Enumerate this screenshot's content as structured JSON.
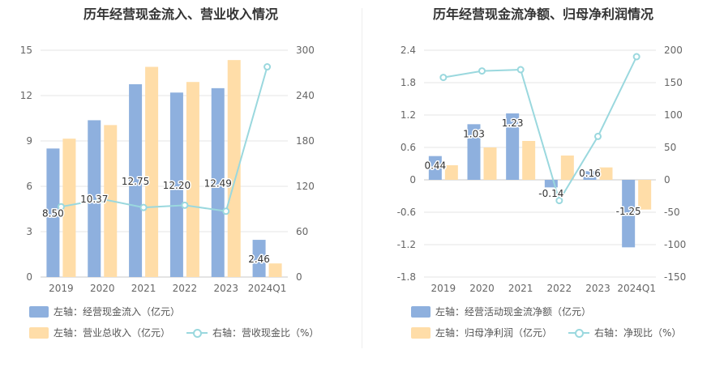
{
  "colors": {
    "blue": "#8eb0de",
    "orange": "#ffdda8",
    "line": "#9ad8de"
  },
  "chart_data": [
    {
      "type": "bar",
      "title": "历年经营现金流入、营业收入情况",
      "categories": [
        "2019",
        "2020",
        "2021",
        "2022",
        "2023",
        "2024Q1"
      ],
      "yleft": {
        "ticks": [
          "0",
          "3",
          "6",
          "9",
          "12",
          "15"
        ],
        "ylim": [
          0,
          15
        ]
      },
      "yright": {
        "ticks": [
          "0",
          "60",
          "120",
          "180",
          "240",
          "300"
        ],
        "ylim": [
          0,
          300
        ]
      },
      "series": [
        {
          "name": "左轴：经营现金流入（亿元）",
          "axis": "left",
          "kind": "bar",
          "color": "#8eb0de",
          "values": [
            8.5,
            10.37,
            12.75,
            12.2,
            12.49,
            2.46
          ],
          "labels": [
            "8.50",
            "10.37",
            "12.75",
            "12.20",
            "12.49",
            "2.46"
          ]
        },
        {
          "name": "左轴：营业总收入（亿元）",
          "axis": "left",
          "kind": "bar",
          "color": "#ffdda8",
          "values": [
            9.15,
            10.05,
            13.9,
            12.9,
            14.35,
            0.9
          ]
        },
        {
          "name": "右轴：营收现金比（%）",
          "axis": "right",
          "kind": "line",
          "color": "#9ad8de",
          "values": [
            93,
            103,
            92,
            95,
            87,
            278
          ]
        }
      ],
      "grid": true,
      "legend_position": "bottom"
    },
    {
      "type": "bar",
      "title": "历年经营现金流净额、归母净利润情况",
      "categories": [
        "2019",
        "2020",
        "2021",
        "2022",
        "2023",
        "2024Q1"
      ],
      "yleft": {
        "ticks": [
          "-1.8",
          "-1.2",
          "-0.6",
          "0",
          "0.6",
          "1.2",
          "1.8",
          "2.4"
        ],
        "ylim": [
          -1.8,
          2.4
        ]
      },
      "yright": {
        "ticks": [
          "-150",
          "-100",
          "-50",
          "0",
          "50",
          "100",
          "150",
          "200"
        ],
        "ylim": [
          -150,
          200
        ]
      },
      "series": [
        {
          "name": "左轴：经营活动现金流净额（亿元）",
          "axis": "left",
          "kind": "bar",
          "color": "#8eb0de",
          "values": [
            0.44,
            1.03,
            1.23,
            -0.14,
            0.16,
            -1.25
          ],
          "labels": [
            "0.44",
            "1.03",
            "1.23",
            "-0.14",
            "0.16",
            "-1.25"
          ]
        },
        {
          "name": "左轴：归母净利润（亿元）",
          "axis": "left",
          "kind": "bar",
          "color": "#ffdda8",
          "values": [
            0.27,
            0.6,
            0.72,
            0.45,
            0.23,
            -0.55
          ]
        },
        {
          "name": "右轴：净现比（%）",
          "axis": "right",
          "kind": "line",
          "color": "#9ad8de",
          "values": [
            158,
            168,
            170,
            -32,
            67,
            190
          ]
        }
      ],
      "grid": true,
      "legend_position": "bottom"
    }
  ]
}
